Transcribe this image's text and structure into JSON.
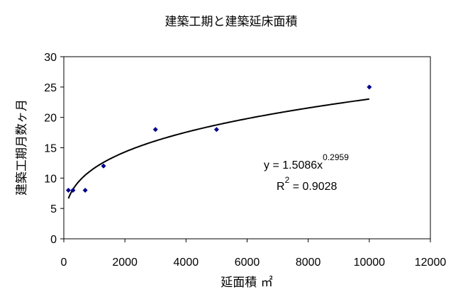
{
  "chart_data": {
    "type": "scatter",
    "title": "建築工期と建築延床面積",
    "xlabel": "延面積 ㎡",
    "ylabel": "建築工期月数ヶ月",
    "xlim": [
      0,
      12000
    ],
    "ylim": [
      0,
      30
    ],
    "x_ticks": [
      0,
      2000,
      4000,
      6000,
      8000,
      10000,
      12000
    ],
    "y_ticks": [
      0,
      5,
      10,
      15,
      20,
      25,
      30
    ],
    "grid": false,
    "legend": "none",
    "marker_color": "#00008b",
    "points": [
      {
        "x": 150,
        "y": 8
      },
      {
        "x": 300,
        "y": 8
      },
      {
        "x": 700,
        "y": 8
      },
      {
        "x": 1300,
        "y": 12
      },
      {
        "x": 3000,
        "y": 18
      },
      {
        "x": 5000,
        "y": 18
      },
      {
        "x": 10000,
        "y": 25
      }
    ],
    "trendline": {
      "type": "power",
      "coefficient": 1.5086,
      "exponent": 0.2959,
      "x_range": [
        150,
        10000
      ],
      "equation_prefix": "y = 1.5086x",
      "equation_exponent": "0.2959",
      "r2_prefix": "R",
      "r2_exponent": "2",
      "r2_value": " = 0.9028"
    }
  }
}
